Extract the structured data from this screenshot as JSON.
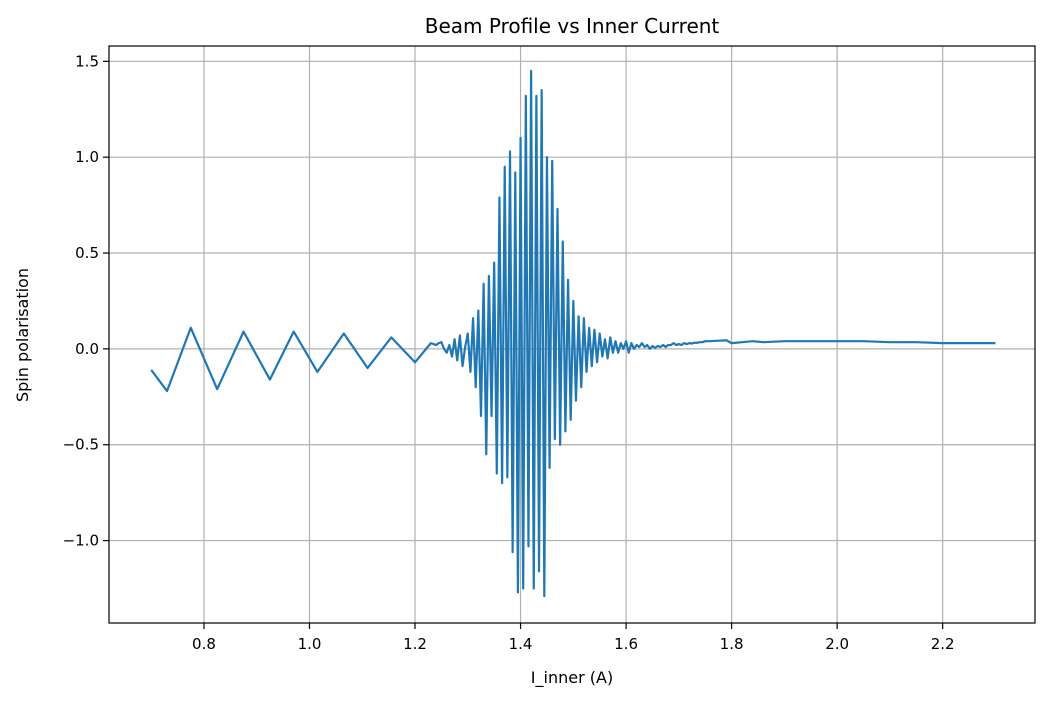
{
  "chart_data": {
    "type": "line",
    "title": "Beam Profile vs Inner Current",
    "xlabel": "I_inner (A)",
    "ylabel": "Spin polarisation",
    "xlim": [
      0.62,
      2.375
    ],
    "ylim": [
      -1.43,
      1.58
    ],
    "xticks": [
      0.8,
      1.0,
      1.2,
      1.4,
      1.6,
      1.8,
      2.0,
      2.2
    ],
    "xtick_labels": [
      "0.8",
      "1.0",
      "1.2",
      "1.4",
      "1.6",
      "1.8",
      "2.0",
      "2.2"
    ],
    "yticks": [
      -1.0,
      -0.5,
      0.0,
      0.5,
      1.0,
      1.5
    ],
    "ytick_labels": [
      "−1.0",
      "−0.5",
      "0.0",
      "0.5",
      "1.0",
      "1.5"
    ],
    "grid": true,
    "series": [
      {
        "color": "#1f77b4",
        "x": [
          0.7,
          0.73,
          0.775,
          0.825,
          0.875,
          0.925,
          0.97,
          1.015,
          1.065,
          1.11,
          1.155,
          1.2,
          1.23,
          1.24,
          1.245,
          1.25,
          1.255,
          1.26,
          1.265,
          1.27,
          1.275,
          1.28,
          1.285,
          1.29,
          1.295,
          1.3,
          1.305,
          1.31,
          1.315,
          1.32,
          1.325,
          1.33,
          1.335,
          1.34,
          1.345,
          1.35,
          1.355,
          1.36,
          1.365,
          1.37,
          1.375,
          1.38,
          1.385,
          1.39,
          1.395,
          1.4,
          1.405,
          1.41,
          1.415,
          1.42,
          1.425,
          1.43,
          1.435,
          1.44,
          1.445,
          1.45,
          1.455,
          1.46,
          1.465,
          1.47,
          1.475,
          1.48,
          1.485,
          1.49,
          1.495,
          1.5,
          1.505,
          1.51,
          1.515,
          1.52,
          1.525,
          1.53,
          1.535,
          1.54,
          1.545,
          1.55,
          1.555,
          1.56,
          1.565,
          1.57,
          1.575,
          1.58,
          1.585,
          1.59,
          1.595,
          1.6,
          1.605,
          1.61,
          1.615,
          1.62,
          1.625,
          1.63,
          1.635,
          1.64,
          1.645,
          1.65,
          1.655,
          1.66,
          1.665,
          1.67,
          1.675,
          1.68,
          1.685,
          1.69,
          1.695,
          1.7,
          1.705,
          1.71,
          1.715,
          1.72,
          1.725,
          1.73,
          1.735,
          1.74,
          1.745,
          1.75,
          1.76,
          1.77,
          1.78,
          1.79,
          1.8,
          1.82,
          1.84,
          1.86,
          1.9,
          1.95,
          2.0,
          2.05,
          2.1,
          2.15,
          2.2,
          2.25,
          2.3
        ],
        "y": [
          -0.11,
          -0.22,
          0.11,
          -0.21,
          0.09,
          -0.16,
          0.09,
          -0.12,
          0.08,
          -0.1,
          0.06,
          -0.07,
          0.03,
          0.02,
          0.03,
          0.035,
          0.0,
          -0.02,
          0.02,
          -0.04,
          0.05,
          -0.06,
          0.07,
          -0.09,
          0.01,
          0.08,
          -0.12,
          0.16,
          -0.2,
          0.2,
          -0.35,
          0.34,
          -0.55,
          0.38,
          -0.35,
          0.45,
          -0.65,
          0.79,
          -0.7,
          0.95,
          -0.67,
          1.03,
          -1.06,
          0.92,
          -1.27,
          1.1,
          -1.25,
          1.32,
          -1.03,
          1.45,
          -1.25,
          1.32,
          -1.16,
          1.35,
          -1.29,
          1.0,
          -0.62,
          0.98,
          -0.47,
          0.73,
          -0.5,
          0.56,
          -0.43,
          0.36,
          -0.37,
          0.25,
          -0.27,
          0.17,
          -0.2,
          0.16,
          -0.12,
          0.11,
          -0.09,
          0.1,
          -0.07,
          0.08,
          -0.04,
          0.05,
          -0.05,
          0.06,
          -0.02,
          0.04,
          -0.02,
          0.03,
          0.0,
          0.04,
          -0.02,
          0.03,
          0.0,
          0.02,
          0.01,
          0.03,
          0.01,
          0.02,
          0.0,
          0.015,
          0.005,
          0.015,
          0.01,
          0.02,
          0.01,
          0.02,
          0.02,
          0.03,
          0.02,
          0.025,
          0.02,
          0.03,
          0.025,
          0.03,
          0.028,
          0.032,
          0.032,
          0.035,
          0.035,
          0.04,
          0.04,
          0.042,
          0.043,
          0.045,
          0.03,
          0.035,
          0.04,
          0.035,
          0.04,
          0.04,
          0.04,
          0.04,
          0.035,
          0.035,
          0.03,
          0.03,
          0.03
        ]
      }
    ]
  }
}
